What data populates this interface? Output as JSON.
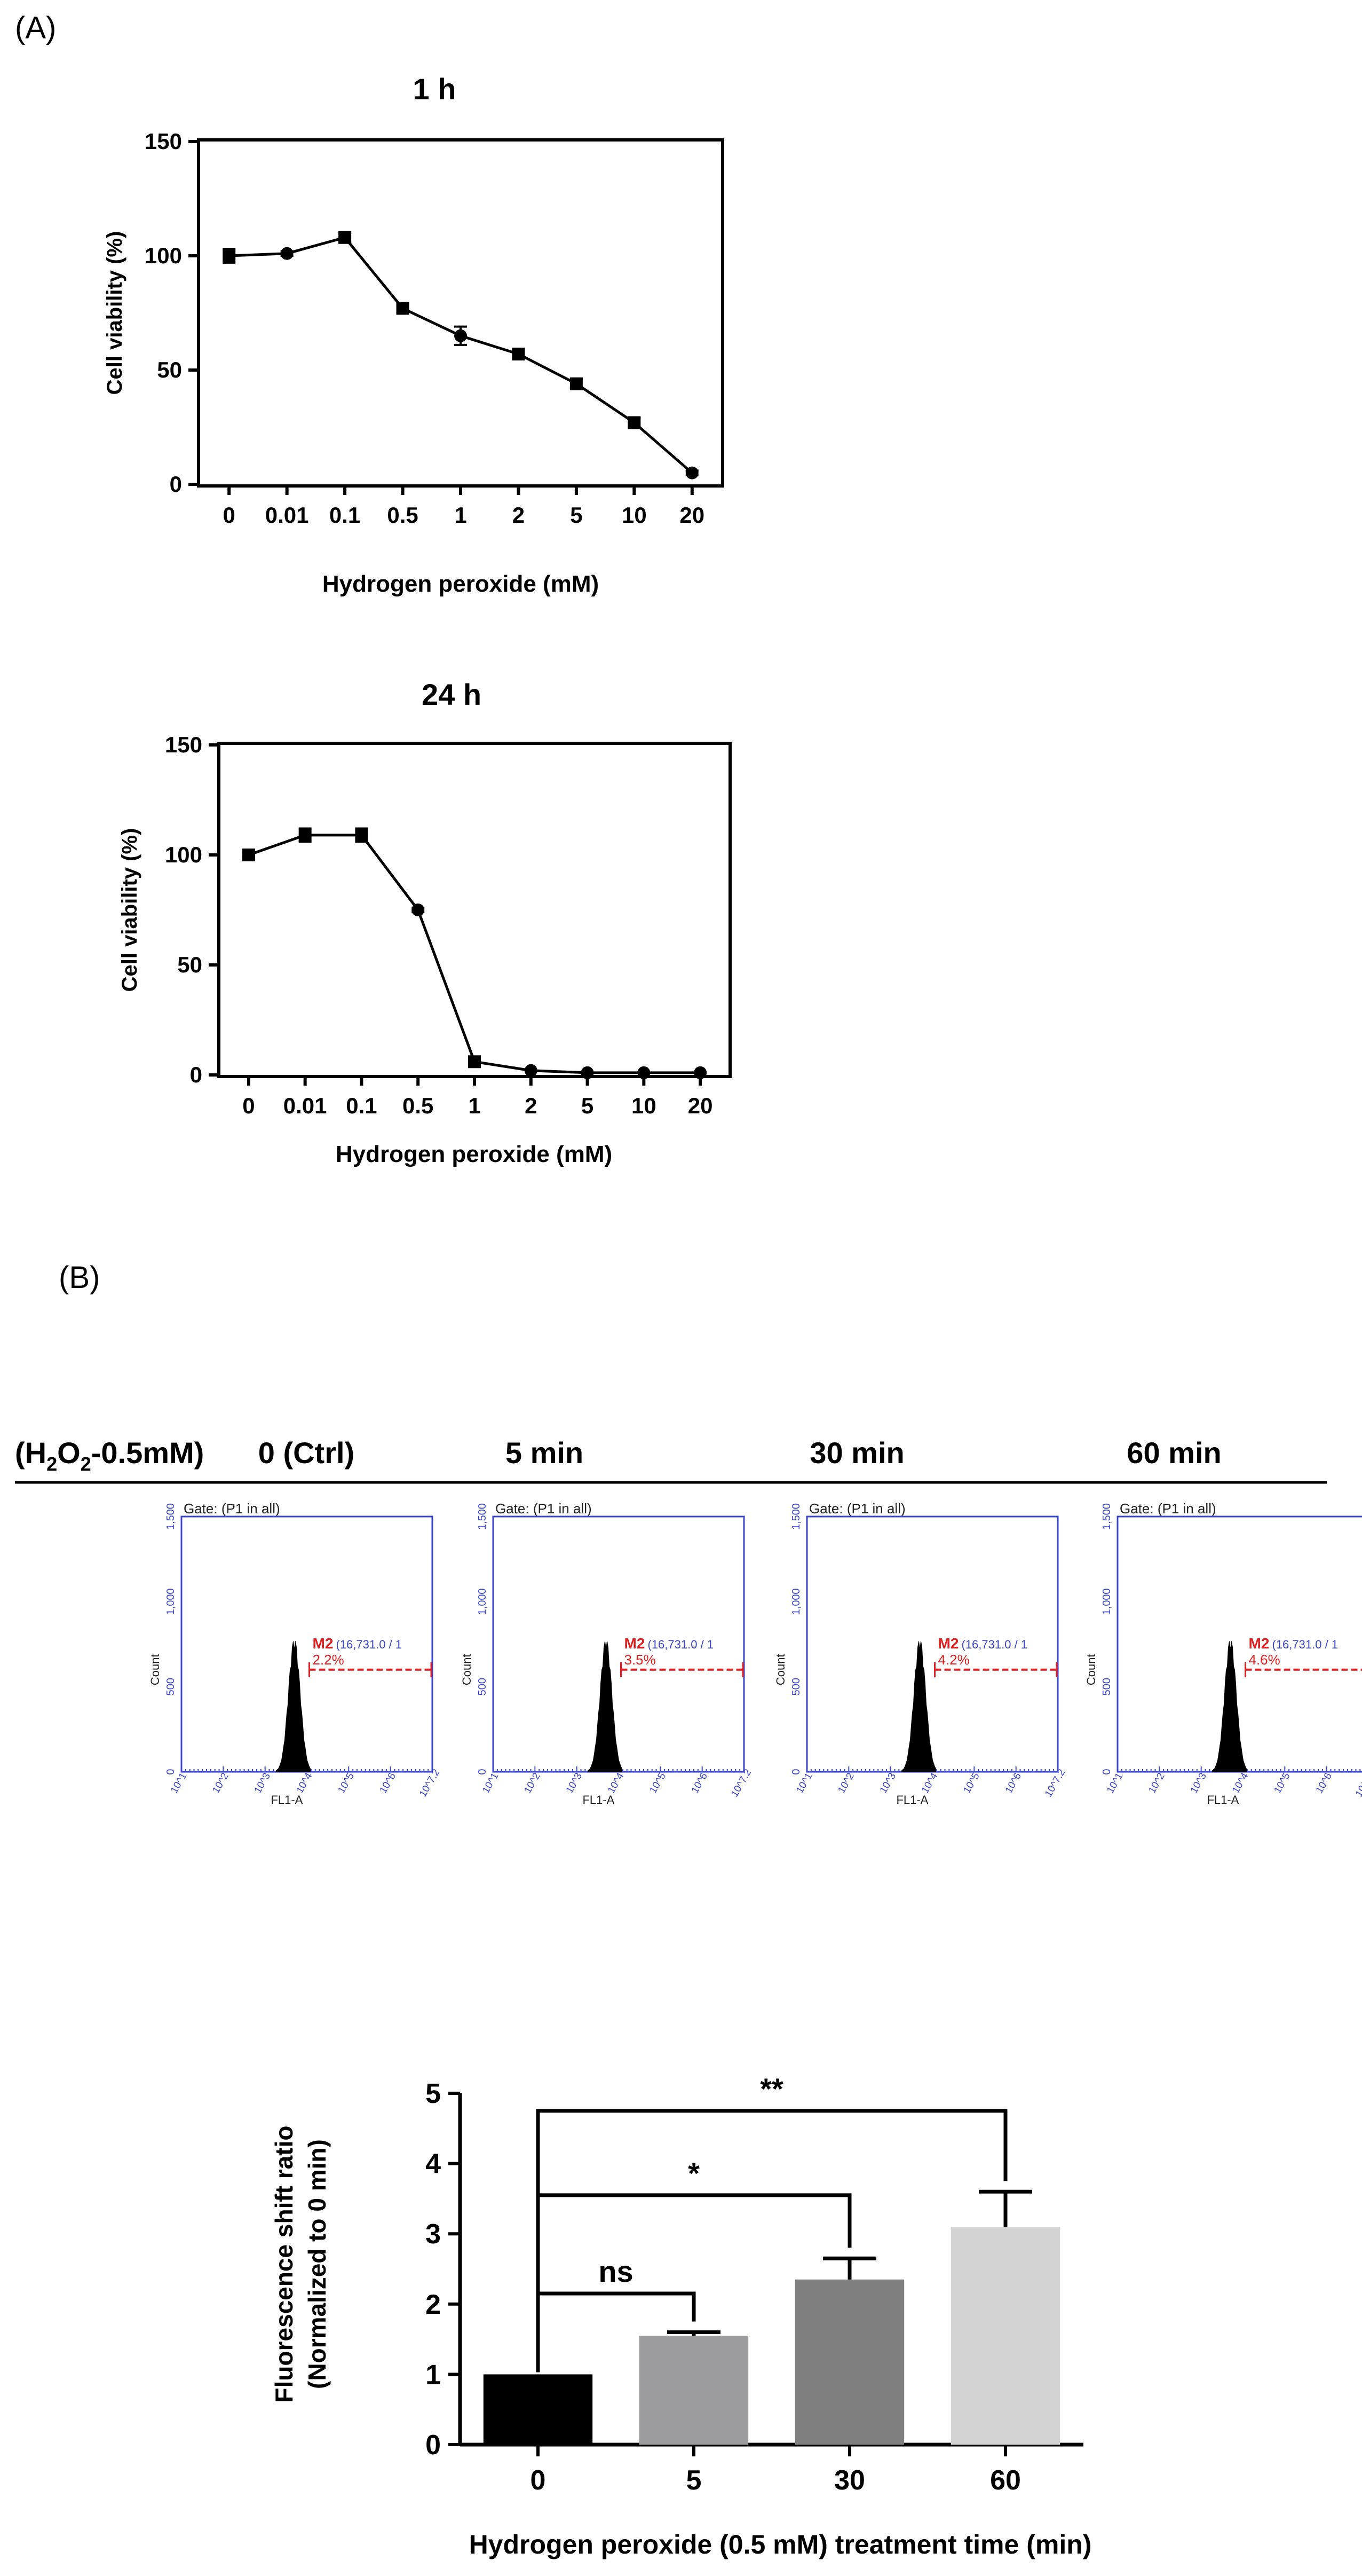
{
  "panel_labels": {
    "a": "(A)",
    "b": "(B)"
  },
  "chart_data": [
    {
      "type": "line",
      "title": "1 h",
      "xlabel": "Hydrogen peroxide (mM)",
      "ylabel": "Cell viability (%)",
      "categories": [
        "0",
        "0.01",
        "0.1",
        "0.5",
        "1",
        "2",
        "5",
        "10",
        "20"
      ],
      "values": [
        100,
        101,
        108,
        77,
        65,
        57,
        44,
        27,
        5
      ],
      "errors": [
        3,
        1,
        2,
        2,
        4,
        2,
        2,
        2,
        1
      ],
      "markers": [
        "square",
        "circle",
        "square",
        "square",
        "circle",
        "square",
        "square",
        "square",
        "circle"
      ],
      "ylim": [
        0,
        150
      ],
      "yticks": [
        0,
        50,
        100,
        150
      ]
    },
    {
      "type": "line",
      "title": "24 h",
      "xlabel": "Hydrogen peroxide (mM)",
      "ylabel": "Cell viability (%)",
      "categories": [
        "0",
        "0.01",
        "0.1",
        "0.5",
        "1",
        "2",
        "5",
        "10",
        "20"
      ],
      "values": [
        100,
        109,
        109,
        75,
        6,
        2,
        1,
        1,
        1
      ],
      "errors": [
        1,
        3,
        3,
        1,
        1,
        0,
        0,
        0,
        0
      ],
      "markers": [
        "square",
        "square",
        "square",
        "circle",
        "square",
        "circle",
        "circle",
        "circle",
        "circle"
      ],
      "ylim": [
        0,
        150
      ],
      "yticks": [
        0,
        50,
        100,
        150
      ]
    },
    {
      "type": "bar",
      "xlabel": "Hydrogen peroxide (0.5 mM) treatment time (min)",
      "ylabel": [
        "Fluorescence shift ratio",
        "(Normalized to  0 min)"
      ],
      "categories": [
        "0",
        "5",
        "30",
        "60"
      ],
      "values": [
        1.0,
        1.55,
        2.35,
        3.1
      ],
      "errors": [
        0,
        0.05,
        0.3,
        0.5
      ],
      "colors": [
        "#000000",
        "#9c9ca0",
        "#7f7f7f",
        "#d3d3d3"
      ],
      "ylim": [
        0,
        5
      ],
      "yticks": [
        0,
        1,
        2,
        3,
        4,
        5
      ],
      "significance": [
        {
          "from": "0",
          "to": "5",
          "label": "ns",
          "level": 2.15
        },
        {
          "from": "0",
          "to": "30",
          "label": "*",
          "level": 3.55
        },
        {
          "from": "0",
          "to": "60",
          "label": "**",
          "level": 4.75
        }
      ]
    }
  ],
  "flow": {
    "treatment_label": "(H",
    "treatment_sub1": "2",
    "treatment_o": "O",
    "treatment_sub2": "2",
    "treatment_rest": "-0.5mM)",
    "gate_label": "Gate: (P1 in all)",
    "y_axis_label": "Count",
    "x_axis_label": "FL1-A",
    "y_ticks": [
      "1,500",
      "1,000",
      "500",
      "0"
    ],
    "x_ticks": [
      "10^1",
      "10^2",
      "10^3",
      "10^4",
      "10^5",
      "10^6",
      "10^7.2"
    ],
    "marker_label": "M2",
    "marker_range": "(16,731.0 / 1",
    "panels": [
      {
        "title": "0 (Ctrl)",
        "percent": "2.2%"
      },
      {
        "title": "5 min",
        "percent": "3.5%"
      },
      {
        "title": "30 min",
        "percent": "4.2%"
      },
      {
        "title": "60 min",
        "percent": "4.6%"
      }
    ]
  },
  "colors": {
    "flow_blue": "#3a46c8",
    "gate_red": "#e02020",
    "axis": "#000000"
  }
}
